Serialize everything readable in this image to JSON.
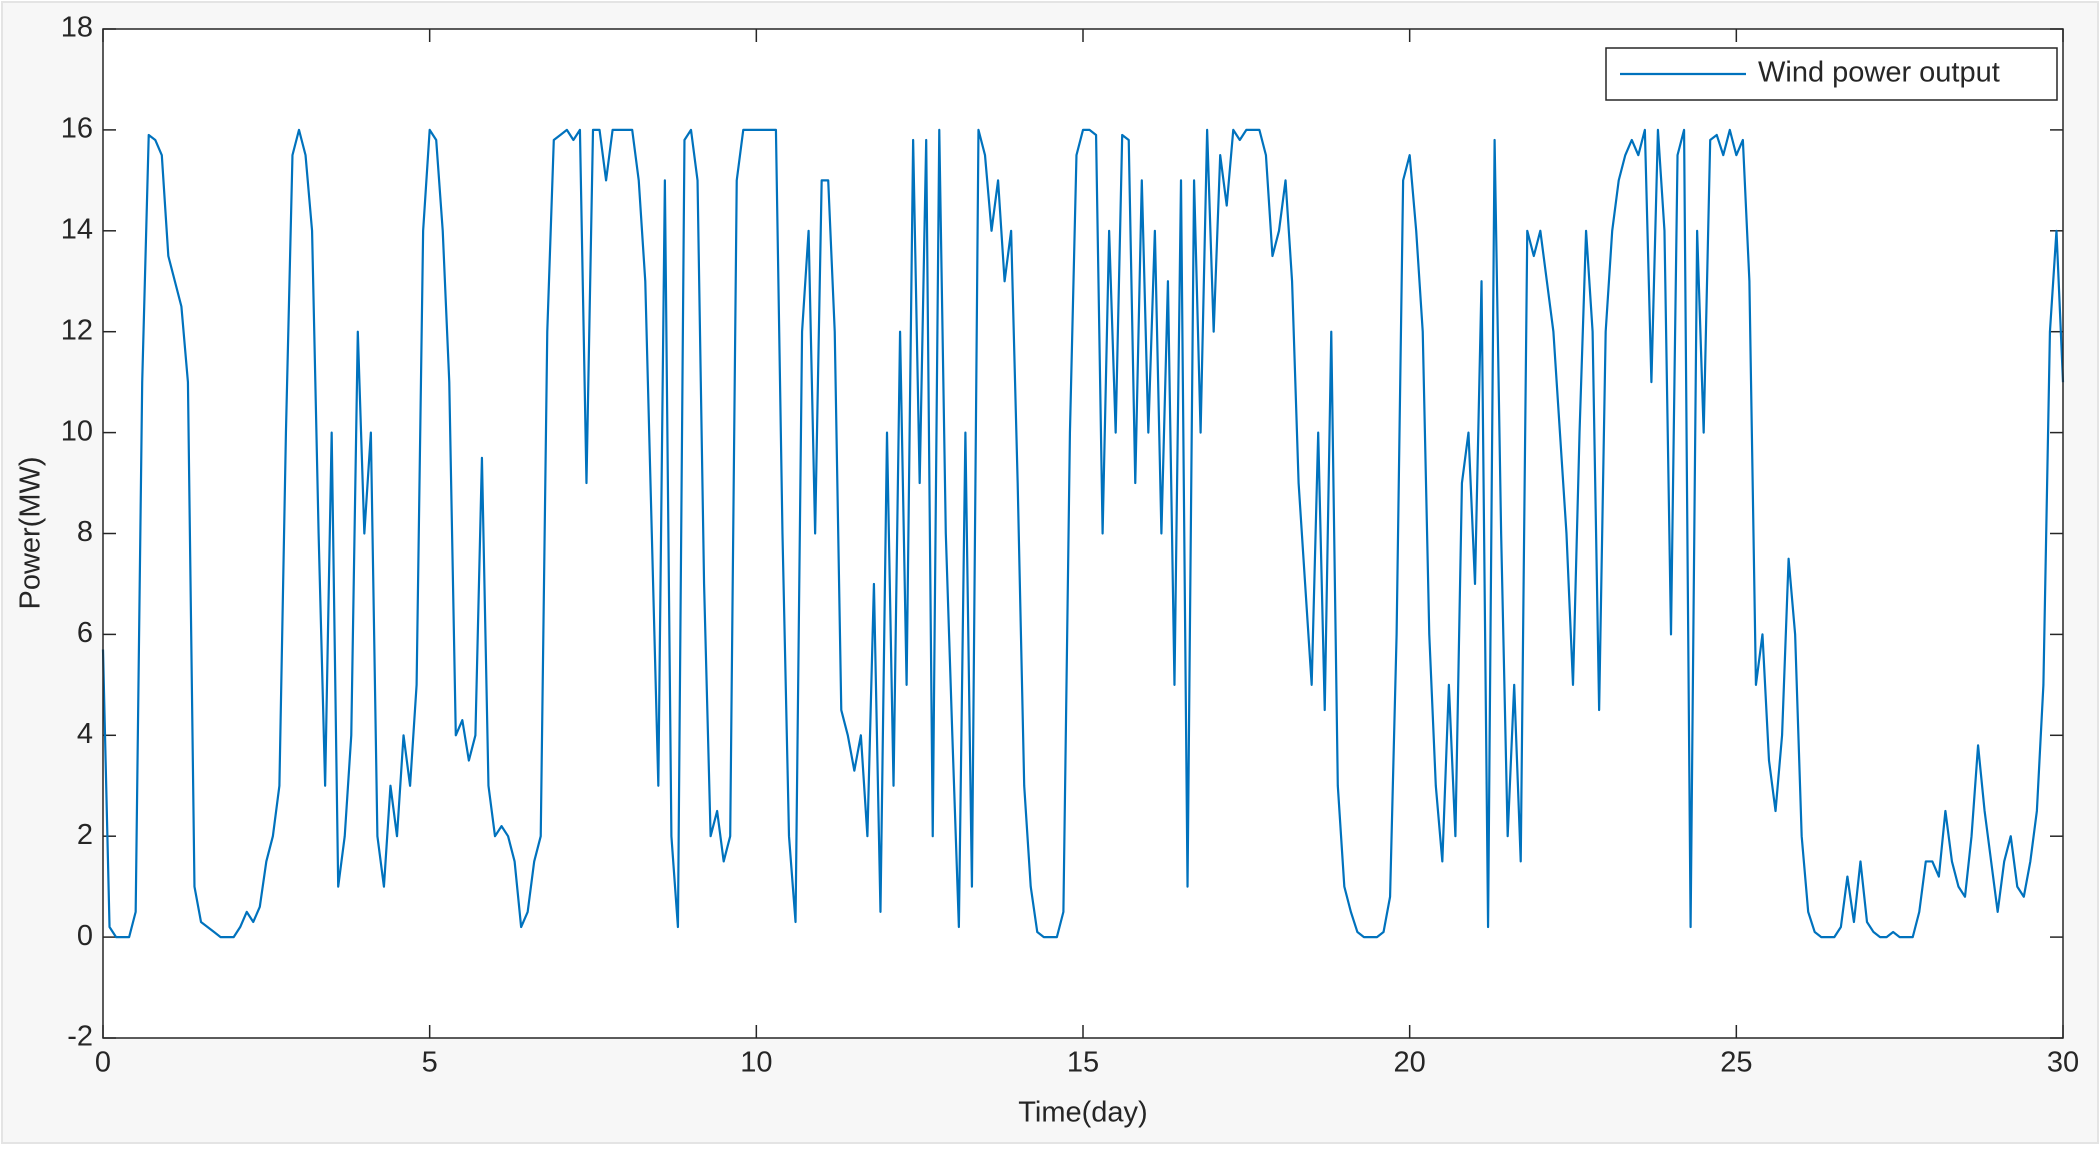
{
  "chart_data": {
    "type": "line",
    "xlabel": "Time(day)",
    "ylabel": "Power(MW)",
    "xlim": [
      0,
      30
    ],
    "xticks": [
      0,
      5,
      10,
      15,
      20,
      25,
      30
    ],
    "ylim": [
      -2,
      18
    ],
    "yticks": [
      -2,
      0,
      2,
      4,
      6,
      8,
      10,
      12,
      14,
      16,
      18
    ],
    "legend": "northeast",
    "box": true,
    "x": [
      0,
      0.1,
      0.2,
      0.3,
      0.4,
      0.5,
      0.6,
      0.7,
      0.8,
      0.9,
      1,
      1.1,
      1.2,
      1.3,
      1.4,
      1.5,
      1.6,
      1.7,
      1.8,
      1.9,
      2,
      2.1,
      2.2,
      2.3,
      2.4,
      2.5,
      2.6,
      2.7,
      2.8,
      2.9,
      3,
      3.1,
      3.2,
      3.3,
      3.4,
      3.5,
      3.6,
      3.7,
      3.8,
      3.9,
      4,
      4.1,
      4.2,
      4.3,
      4.4,
      4.5,
      4.6,
      4.7,
      4.8,
      4.9,
      5,
      5.1,
      5.2,
      5.3,
      5.4,
      5.5,
      5.6,
      5.7,
      5.8,
      5.9,
      6,
      6.1,
      6.2,
      6.3,
      6.4,
      6.5,
      6.6,
      6.7,
      6.8,
      6.9,
      7,
      7.1,
      7.2,
      7.3,
      7.4,
      7.5,
      7.6,
      7.7,
      7.8,
      7.9,
      8,
      8.1,
      8.2,
      8.3,
      8.4,
      8.5,
      8.6,
      8.7,
      8.8,
      8.9,
      9,
      9.1,
      9.2,
      9.3,
      9.4,
      9.5,
      9.6,
      9.7,
      9.8,
      9.9,
      10,
      10.1,
      10.2,
      10.3,
      10.4,
      10.5,
      10.6,
      10.7,
      10.8,
      10.9,
      11,
      11.1,
      11.2,
      11.3,
      11.4,
      11.5,
      11.6,
      11.7,
      11.8,
      11.9,
      12,
      12.1,
      12.2,
      12.3,
      12.4,
      12.5,
      12.6,
      12.7,
      12.8,
      12.9,
      13,
      13.1,
      13.2,
      13.3,
      13.4,
      13.5,
      13.6,
      13.7,
      13.8,
      13.9,
      14,
      14.1,
      14.2,
      14.3,
      14.4,
      14.5,
      14.6,
      14.7,
      14.8,
      14.9,
      15,
      15.1,
      15.2,
      15.3,
      15.4,
      15.5,
      15.6,
      15.7,
      15.8,
      15.9,
      16,
      16.1,
      16.2,
      16.3,
      16.4,
      16.5,
      16.6,
      16.7,
      16.8,
      16.9,
      17,
      17.1,
      17.2,
      17.3,
      17.4,
      17.5,
      17.6,
      17.7,
      17.8,
      17.9,
      18,
      18.1,
      18.2,
      18.3,
      18.4,
      18.5,
      18.6,
      18.7,
      18.8,
      18.9,
      19,
      19.1,
      19.2,
      19.3,
      19.4,
      19.5,
      19.6,
      19.7,
      19.8,
      19.9,
      20,
      20.1,
      20.2,
      20.3,
      20.4,
      20.5,
      20.6,
      20.7,
      20.8,
      20.9,
      21,
      21.1,
      21.2,
      21.3,
      21.4,
      21.5,
      21.6,
      21.7,
      21.8,
      21.9,
      22,
      22.1,
      22.2,
      22.3,
      22.4,
      22.5,
      22.6,
      22.7,
      22.8,
      22.9,
      23,
      23.1,
      23.2,
      23.3,
      23.4,
      23.5,
      23.6,
      23.7,
      23.8,
      23.9,
      24,
      24.1,
      24.2,
      24.3,
      24.4,
      24.5,
      24.6,
      24.7,
      24.8,
      24.9,
      25,
      25.1,
      25.2,
      25.3,
      25.4,
      25.5,
      25.6,
      25.7,
      25.8,
      25.9,
      26,
      26.1,
      26.2,
      26.3,
      26.4,
      26.5,
      26.6,
      26.7,
      26.8,
      26.9,
      27,
      27.1,
      27.2,
      27.3,
      27.4,
      27.5,
      27.6,
      27.7,
      27.8,
      27.9,
      28,
      28.1,
      28.2,
      28.3,
      28.4,
      28.5,
      28.6,
      28.7,
      28.8,
      28.9,
      29,
      29.1,
      29.2,
      29.3,
      29.4,
      29.5,
      29.6,
      29.7,
      29.8,
      29.9,
      30
    ],
    "series": [
      {
        "name": "Wind power output",
        "color": "#0072bd",
        "values": [
          5.7,
          0.2,
          0,
          0,
          0,
          0.5,
          11,
          15.9,
          15.8,
          15.5,
          13.5,
          13,
          12.5,
          11,
          1,
          0.3,
          0.2,
          0.1,
          0,
          0,
          0,
          0.2,
          0.5,
          0.3,
          0.6,
          1.5,
          2,
          3,
          10,
          15.5,
          16,
          15.5,
          14,
          8,
          3,
          10,
          1,
          2,
          4,
          12,
          8,
          10,
          2,
          1,
          3,
          2,
          4,
          3,
          5,
          14,
          16,
          15.8,
          14,
          11,
          4,
          4.3,
          3.5,
          4,
          9.5,
          3,
          2,
          2.2,
          2,
          1.5,
          0.2,
          0.5,
          1.5,
          2,
          12,
          15.8,
          15.9,
          16,
          15.8,
          16,
          9,
          16,
          16,
          15,
          16,
          16,
          16,
          16,
          15,
          13,
          8,
          3,
          15,
          2,
          0.2,
          15.8,
          16,
          15,
          7,
          2,
          2.5,
          1.5,
          2,
          15,
          16,
          16,
          16,
          16,
          16,
          16,
          8,
          2,
          0.3,
          12,
          14,
          8,
          15,
          15,
          12,
          4.5,
          4,
          3.3,
          4,
          2,
          7,
          0.5,
          10,
          3,
          12,
          5,
          15.8,
          9,
          15.8,
          2,
          16,
          8,
          4,
          0.2,
          10,
          1,
          16,
          15.5,
          14,
          15,
          13,
          14,
          9,
          3,
          1,
          0.1,
          0,
          0,
          0,
          0.5,
          10,
          15.5,
          16,
          16,
          15.9,
          8,
          14,
          10,
          15.9,
          15.8,
          9,
          15,
          10,
          14,
          8,
          13,
          5,
          15,
          1,
          15,
          10,
          16,
          12,
          15.5,
          14.5,
          16,
          15.8,
          16,
          16,
          16,
          15.5,
          13.5,
          14,
          15,
          13,
          9,
          7,
          5,
          10,
          4.5,
          12,
          3,
          1,
          0.5,
          0.1,
          0,
          0,
          0,
          0.1,
          0.8,
          6,
          15,
          15.5,
          14,
          12,
          6,
          3,
          1.5,
          5,
          2,
          9,
          10,
          7,
          13,
          0.2,
          15.8,
          8,
          2,
          5,
          1.5,
          14,
          13.5,
          14,
          13,
          12,
          10,
          8,
          5,
          10,
          14,
          12,
          4.5,
          12,
          14,
          15,
          15.5,
          15.8,
          15.5,
          16,
          11,
          16,
          14,
          6,
          15.5,
          16,
          0.2,
          14,
          10,
          15.8,
          15.9,
          15.5,
          16,
          15.5,
          15.8,
          13,
          5,
          6,
          3.5,
          2.5,
          4,
          7.5,
          6,
          2,
          0.5,
          0.1,
          0,
          0,
          0,
          0.2,
          1.2,
          0.3,
          1.5,
          0.3,
          0.1,
          0,
          0,
          0.1,
          0,
          0,
          0,
          0.5,
          1.5,
          1.5,
          1.2,
          2.5,
          1.5,
          1,
          0.8,
          2,
          3.8,
          2.5,
          1.5,
          0.5,
          1.5,
          2,
          1,
          0.8,
          1.5,
          2.5,
          5,
          12,
          14,
          11
        ]
      }
    ]
  }
}
